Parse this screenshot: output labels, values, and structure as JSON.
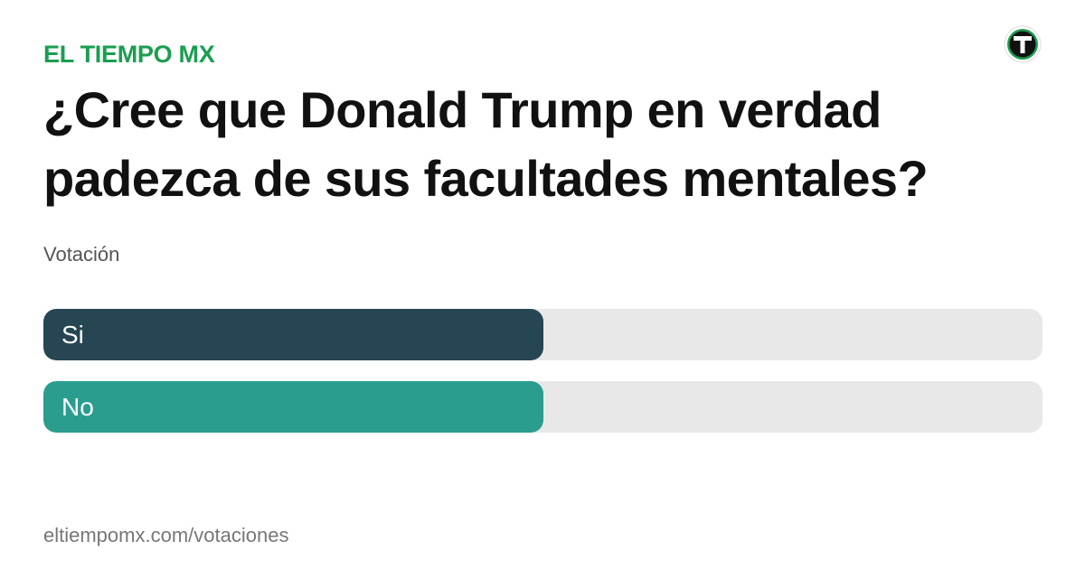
{
  "brand": {
    "name": "EL TIEMPO MX",
    "color": "#1a9e4f",
    "logo_icon": "et-logo-icon"
  },
  "poll": {
    "question": "¿Cree que Donald Trump en verdad padezca de sus facultades mentales?",
    "subtitle": "Votación",
    "options": [
      {
        "label": "Si",
        "share": 0.5,
        "color": "#264653"
      },
      {
        "label": "No",
        "share": 0.5,
        "color": "#2a9d8f"
      }
    ],
    "track_color": "#e8e8e8"
  },
  "footer": {
    "url": "eltiempomx.com/votaciones"
  }
}
